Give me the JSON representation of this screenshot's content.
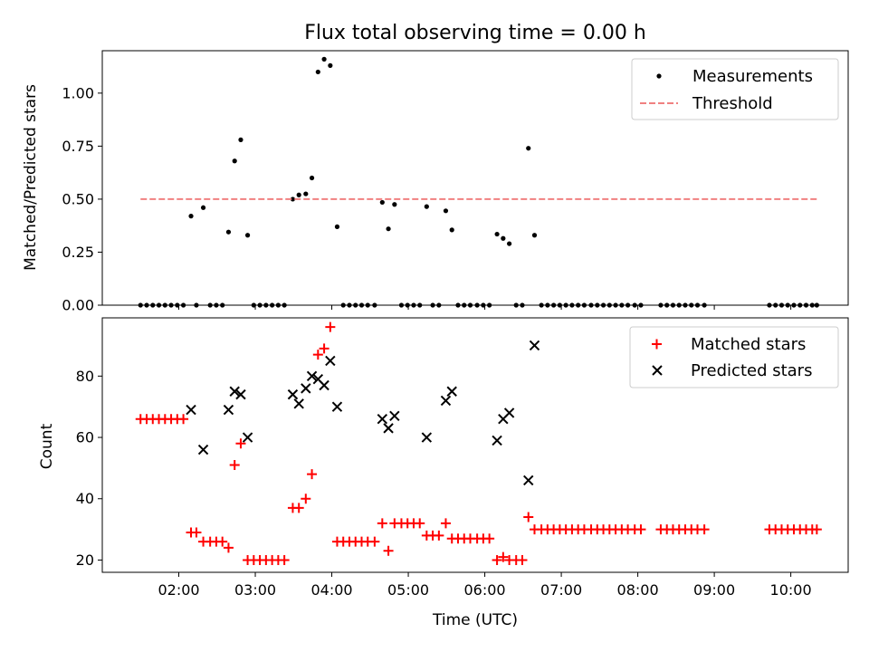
{
  "chart_data": [
    {
      "type": "scatter",
      "title": "Flux total observing time = 0.00 h",
      "ylabel": "Matched/Predicted stars",
      "xlabel": "",
      "xlim": [
        1.0,
        10.75
      ],
      "ylim": [
        0,
        1.2
      ],
      "yticks": [
        0.0,
        0.25,
        0.5,
        0.75,
        1.0
      ],
      "ytick_labels": [
        "0.00",
        "0.25",
        "0.50",
        "0.75",
        "1.00"
      ],
      "xticks": [
        2,
        3,
        4,
        5,
        6,
        7,
        8,
        9,
        10
      ],
      "xtick_labels": [],
      "legend_position": "top-right",
      "grid": false,
      "series": [
        {
          "name": "Measurements",
          "kind": "scatter",
          "marker": "dot",
          "color": "#000000",
          "x": [
            1.5,
            1.58,
            1.66,
            1.74,
            1.82,
            1.9,
            1.98,
            2.06,
            2.16,
            2.23,
            2.32,
            2.41,
            2.49,
            2.57,
            2.65,
            2.73,
            2.81,
            2.9,
            2.98,
            3.06,
            3.14,
            3.22,
            3.3,
            3.38,
            3.49,
            3.57,
            3.66,
            3.74,
            3.82,
            3.9,
            3.98,
            4.07,
            4.15,
            4.23,
            4.31,
            4.39,
            4.47,
            4.56,
            4.66,
            4.74,
            4.82,
            4.91,
            4.99,
            5.07,
            5.15,
            5.24,
            5.32,
            5.4,
            5.49,
            5.57,
            5.65,
            5.73,
            5.81,
            5.9,
            5.98,
            6.06,
            6.16,
            6.24,
            6.32,
            6.41,
            6.49,
            6.57,
            6.65,
            6.74,
            6.82,
            6.9,
            6.98,
            7.06,
            7.14,
            7.22,
            7.3,
            7.39,
            7.47,
            7.55,
            7.63,
            7.71,
            7.79,
            7.87,
            7.96,
            8.04,
            8.3,
            8.38,
            8.46,
            8.54,
            8.62,
            8.7,
            8.78,
            8.87,
            9.72,
            9.8,
            9.88,
            9.96,
            10.04,
            10.12,
            10.2,
            10.28,
            10.34
          ],
          "y": [
            0,
            0,
            0,
            0,
            0,
            0,
            0,
            0,
            0.42,
            0,
            0.46,
            0,
            0,
            0,
            0.345,
            0.68,
            0.78,
            0.33,
            0,
            0,
            0,
            0,
            0,
            0,
            0.5,
            0.52,
            0.525,
            0.6,
            1.1,
            1.16,
            1.13,
            0.37,
            0,
            0,
            0,
            0,
            0,
            0,
            0.485,
            0.36,
            0.475,
            0,
            0,
            0,
            0,
            0.465,
            0,
            0,
            0.445,
            0.355,
            0,
            0,
            0,
            0,
            0,
            0,
            0.335,
            0.315,
            0.29,
            0,
            0,
            0.74,
            0.33,
            0,
            0,
            0,
            0,
            0,
            0,
            0,
            0,
            0,
            0,
            0,
            0,
            0,
            0,
            0,
            0,
            0,
            0,
            0,
            0,
            0,
            0,
            0,
            0,
            0,
            0,
            0,
            0,
            0,
            0,
            0,
            0,
            0,
            0
          ]
        },
        {
          "name": "Threshold",
          "kind": "line",
          "style": "dashed",
          "color": "#f08080",
          "x": [
            1.5,
            10.34
          ],
          "y": [
            0.5,
            0.5
          ]
        }
      ]
    },
    {
      "type": "scatter",
      "title": "",
      "ylabel": "Count",
      "xlabel": "Time (UTC)",
      "xlim": [
        1.0,
        10.75
      ],
      "ylim": [
        16,
        99
      ],
      "yticks": [
        20,
        40,
        60,
        80
      ],
      "ytick_labels": [
        "20",
        "40",
        "60",
        "80"
      ],
      "xticks": [
        2,
        3,
        4,
        5,
        6,
        7,
        8,
        9,
        10
      ],
      "xtick_labels": [
        "02:00",
        "03:00",
        "04:00",
        "05:00",
        "06:00",
        "07:00",
        "08:00",
        "09:00",
        "10:00"
      ],
      "legend_position": "top-right",
      "grid": false,
      "series": [
        {
          "name": "Matched stars",
          "kind": "scatter",
          "marker": "plus",
          "color": "#ff0000",
          "x": [
            1.5,
            1.58,
            1.66,
            1.74,
            1.82,
            1.9,
            1.98,
            2.06,
            2.16,
            2.23,
            2.32,
            2.41,
            2.49,
            2.57,
            2.65,
            2.73,
            2.81,
            2.9,
            2.98,
            3.06,
            3.14,
            3.22,
            3.3,
            3.38,
            3.49,
            3.57,
            3.66,
            3.74,
            3.82,
            3.9,
            3.98,
            4.07,
            4.15,
            4.23,
            4.31,
            4.39,
            4.47,
            4.56,
            4.66,
            4.74,
            4.82,
            4.91,
            4.99,
            5.07,
            5.15,
            5.24,
            5.32,
            5.4,
            5.49,
            5.57,
            5.65,
            5.73,
            5.81,
            5.9,
            5.98,
            6.06,
            6.16,
            6.24,
            6.32,
            6.41,
            6.49,
            6.57,
            6.65,
            6.74,
            6.82,
            6.9,
            6.98,
            7.06,
            7.14,
            7.22,
            7.3,
            7.39,
            7.47,
            7.55,
            7.63,
            7.71,
            7.79,
            7.87,
            7.96,
            8.04,
            8.3,
            8.38,
            8.46,
            8.54,
            8.62,
            8.7,
            8.78,
            8.87,
            9.72,
            9.8,
            9.88,
            9.96,
            10.04,
            10.12,
            10.2,
            10.28,
            10.34
          ],
          "y": [
            66,
            66,
            66,
            66,
            66,
            66,
            66,
            66,
            29,
            29,
            26,
            26,
            26,
            26,
            24,
            51,
            58,
            20,
            20,
            20,
            20,
            20,
            20,
            20,
            37,
            37,
            40,
            48,
            87,
            89,
            96,
            26,
            26,
            26,
            26,
            26,
            26,
            26,
            32,
            23,
            32,
            32,
            32,
            32,
            32,
            28,
            28,
            28,
            32,
            27,
            27,
            27,
            27,
            27,
            27,
            27,
            20,
            21,
            20,
            20,
            20,
            34,
            30,
            30,
            30,
            30,
            30,
            30,
            30,
            30,
            30,
            30,
            30,
            30,
            30,
            30,
            30,
            30,
            30,
            30,
            30,
            30,
            30,
            30,
            30,
            30,
            30,
            30,
            30,
            30,
            30,
            30,
            30,
            30,
            30,
            30,
            30
          ]
        },
        {
          "name": "Predicted stars",
          "kind": "scatter",
          "marker": "x",
          "color": "#000000",
          "x": [
            2.16,
            2.32,
            2.65,
            2.73,
            2.81,
            2.9,
            3.49,
            3.57,
            3.66,
            3.74,
            3.82,
            3.9,
            3.98,
            4.07,
            4.66,
            4.74,
            4.82,
            5.24,
            5.49,
            5.57,
            6.16,
            6.24,
            6.32,
            6.57,
            6.65
          ],
          "y": [
            69,
            56,
            69,
            75,
            74,
            60,
            74,
            71,
            76,
            80,
            79,
            77,
            85,
            70,
            66,
            63,
            67,
            60,
            72,
            75,
            59,
            66,
            68,
            46,
            90
          ]
        }
      ]
    }
  ],
  "legends": [
    {
      "items": [
        {
          "label": "Measurements"
        },
        {
          "label": "Threshold"
        }
      ]
    },
    {
      "items": [
        {
          "label": "Matched stars"
        },
        {
          "label": "Predicted stars"
        }
      ]
    }
  ]
}
